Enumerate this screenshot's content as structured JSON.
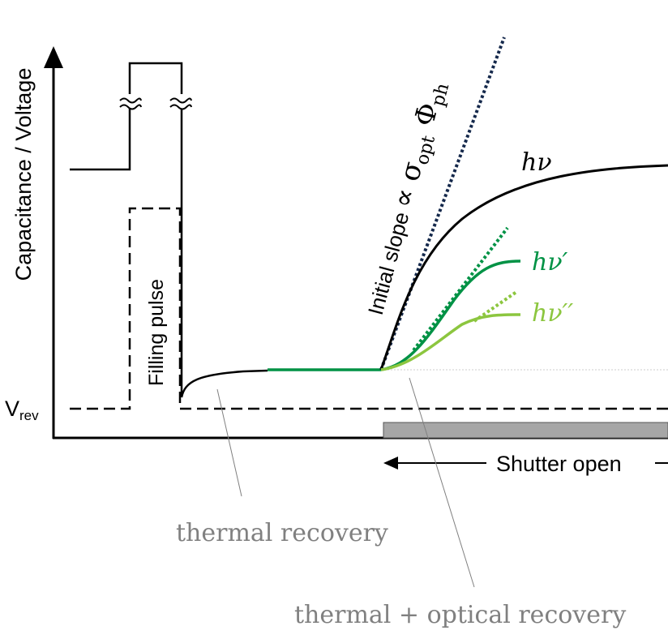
{
  "axes": {
    "ylabel": "Capacitance / Voltage",
    "vrev_main": "V",
    "vrev_sub": "rev"
  },
  "labels": {
    "filling_pulse": "Filling pulse",
    "shutter_open": "Shutter open",
    "slope_text": "Initial slope",
    "slope_symbol": "∝ σ",
    "slope_sub1": "opt",
    "slope_phi": " Φ",
    "slope_sub2": "ph",
    "hv": "hν",
    "hv1": "hν′",
    "hv2": "hν′′",
    "thermal": "thermal recovery",
    "thermal_optical": "thermal + optical recovery"
  },
  "colors": {
    "black": "#000000",
    "dark_green": "#009245",
    "light_green": "#8cc63f",
    "navy": "#14284b",
    "gray_text": "#808080",
    "shutter_bar": "#a6a6a6"
  }
}
